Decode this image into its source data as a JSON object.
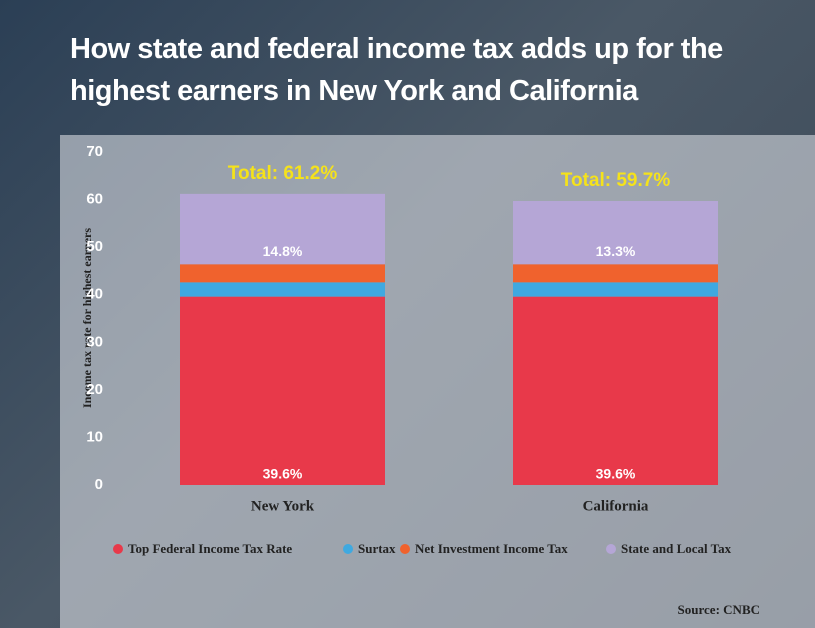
{
  "chart_data": {
    "type": "stacked-bar",
    "title": "How state and federal income tax adds up for the highest earners in New York and California",
    "y_label": "Income tax rate for highest earners",
    "source": "Source: CNBC",
    "categories": [
      "New York",
      "California"
    ],
    "total_labels": [
      "Total: 61.2%",
      "Total: 59.7%"
    ],
    "series": [
      {
        "name": "Top Federal Income Tax Rate",
        "color": "#e8394a",
        "values": [
          39.6,
          39.6
        ],
        "value_labels": [
          "39.6%",
          "39.6%"
        ]
      },
      {
        "name": "Surtax",
        "color": "#3fa9e0",
        "values": [
          3.0,
          3.0
        ]
      },
      {
        "name": "Net Investment Income Tax",
        "color": "#f0622d",
        "values": [
          3.8,
          3.8
        ]
      },
      {
        "name": "State and Local Tax",
        "color": "#b5a6d6",
        "values": [
          14.8,
          13.3
        ],
        "value_labels": [
          "14.8%",
          "13.3%"
        ]
      }
    ],
    "ylim": [
      0,
      70
    ],
    "yticks": [
      0,
      10,
      20,
      30,
      40,
      50,
      60,
      70
    ]
  }
}
